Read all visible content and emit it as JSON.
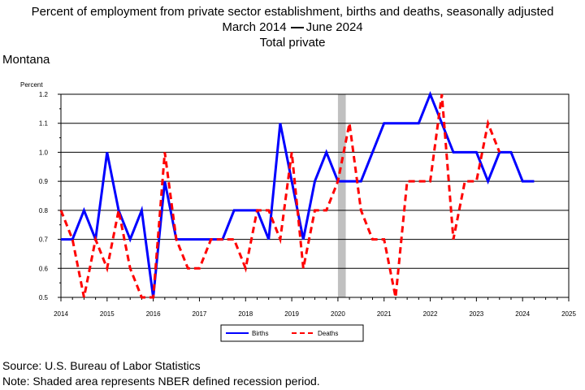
{
  "header": {
    "title": "Percent of employment from private sector establishment, births and deaths, seasonally adjusted",
    "date_start": "March 2014",
    "date_end": "June 2024",
    "subtitle": "Total private",
    "region": "Montana"
  },
  "footer": {
    "source": "Source: U.S. Bureau of Labor Statistics",
    "note": "Note: Shaded area represents NBER defined recession period."
  },
  "chart_data": {
    "type": "line",
    "ylabel": "Percent",
    "ylim": [
      0.5,
      1.2
    ],
    "yticks": [
      "0.5",
      "0.6",
      "0.7",
      "0.8",
      "0.9",
      "1.0",
      "1.1",
      "1.2"
    ],
    "xlim": [
      2014,
      2025
    ],
    "xticks": [
      "2014",
      "2015",
      "2016",
      "2017",
      "2018",
      "2019",
      "2020",
      "2021",
      "2022",
      "2023",
      "2024",
      "2025"
    ],
    "grid": true,
    "legend_position": "bottom-center",
    "recession": {
      "start": 2020.0,
      "end": 2020.17
    },
    "series": [
      {
        "name": "Births",
        "color": "#0000ff",
        "style": "solid",
        "x": [
          2014.0,
          2014.25,
          2014.5,
          2014.75,
          2015.0,
          2015.25,
          2015.5,
          2015.75,
          2016.0,
          2016.25,
          2016.5,
          2016.75,
          2017.0,
          2017.25,
          2017.5,
          2017.75,
          2018.0,
          2018.25,
          2018.5,
          2018.75,
          2019.0,
          2019.25,
          2019.5,
          2019.75,
          2020.0,
          2020.25,
          2020.5,
          2020.75,
          2021.0,
          2021.25,
          2021.5,
          2021.75,
          2022.0,
          2022.25,
          2022.5,
          2022.75,
          2023.0,
          2023.25,
          2023.5,
          2023.75,
          2024.0,
          2024.25
        ],
        "values": [
          0.7,
          0.7,
          0.8,
          0.7,
          1.0,
          0.8,
          0.7,
          0.8,
          0.5,
          0.9,
          0.7,
          0.7,
          0.7,
          0.7,
          0.7,
          0.8,
          0.8,
          0.8,
          0.7,
          1.1,
          0.9,
          0.7,
          0.9,
          1.0,
          0.9,
          0.9,
          0.9,
          1.0,
          1.1,
          1.1,
          1.1,
          1.1,
          1.2,
          1.1,
          1.0,
          1.0,
          1.0,
          0.9,
          1.0,
          1.0,
          0.9,
          0.9
        ]
      },
      {
        "name": "Deaths",
        "color": "#ff0000",
        "style": "dashed",
        "x": [
          2014.0,
          2014.25,
          2014.5,
          2014.75,
          2015.0,
          2015.25,
          2015.5,
          2015.75,
          2016.0,
          2016.25,
          2016.5,
          2016.75,
          2017.0,
          2017.25,
          2017.5,
          2017.75,
          2018.0,
          2018.25,
          2018.5,
          2018.75,
          2019.0,
          2019.25,
          2019.5,
          2019.75,
          2020.0,
          2020.25,
          2020.5,
          2020.75,
          2021.0,
          2021.25,
          2021.5,
          2021.75,
          2022.0,
          2022.25,
          2022.5,
          2022.75,
          2023.0,
          2023.25,
          2023.5
        ],
        "values": [
          0.8,
          0.7,
          0.5,
          0.7,
          0.6,
          0.8,
          0.6,
          0.5,
          0.5,
          1.0,
          0.7,
          0.6,
          0.6,
          0.7,
          0.7,
          0.7,
          0.6,
          0.8,
          0.8,
          0.7,
          1.0,
          0.6,
          0.8,
          0.8,
          0.9,
          1.1,
          0.8,
          0.7,
          0.7,
          0.5,
          0.9,
          0.9,
          0.9,
          1.2,
          0.7,
          0.9,
          0.9,
          1.1,
          1.0
        ]
      }
    ]
  }
}
